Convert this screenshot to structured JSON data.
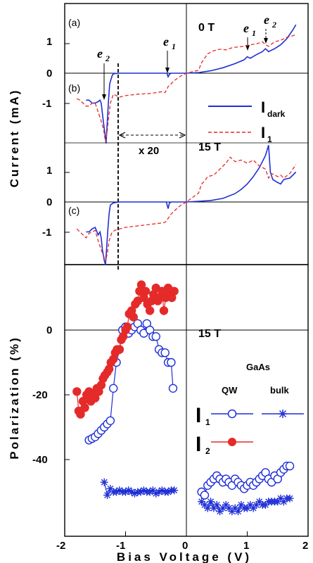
{
  "chart_data": [
    {
      "type": "line",
      "panel_label": "(a)",
      "field_label": "0 T",
      "ylabel": "Current (mA)",
      "ylim": [
        -2.6,
        1.75
      ],
      "xlim": [
        -2,
        2
      ],
      "yticks": [
        "1",
        "0",
        "-1"
      ],
      "annotations": [
        "e",
        "1",
        "e",
        "2"
      ],
      "series": [
        {
          "name": "I_dark",
          "color": "#1f2fd6",
          "style": "solid",
          "x": [
            -1.65,
            -1.6,
            -1.55,
            -1.5,
            -1.45,
            -1.42,
            -1.4,
            -1.38,
            -1.36,
            -1.34,
            -1.32,
            -1.3,
            -1.28,
            -1.26,
            -1.22,
            -1.2,
            -1.1,
            -1.0,
            -0.5,
            -0.32,
            -0.3,
            -0.28,
            -0.25,
            -0.1,
            0,
            0.2,
            0.4,
            0.6,
            0.8,
            0.95,
            1.0,
            1.05,
            1.15,
            1.25,
            1.3,
            1.35,
            1.45,
            1.55,
            1.65,
            1.75,
            1.8
          ],
          "y": [
            -0.9,
            -0.9,
            -1.0,
            -1.0,
            -0.95,
            -0.9,
            -1.0,
            -1.35,
            -1.7,
            -2.0,
            -2.35,
            -1.6,
            -0.9,
            -0.35,
            -0.08,
            -0.02,
            0,
            0,
            0,
            0,
            -0.12,
            -0.04,
            0,
            0,
            0,
            0.02,
            0.08,
            0.18,
            0.32,
            0.45,
            0.55,
            0.5,
            0.62,
            0.72,
            0.82,
            0.72,
            0.82,
            0.95,
            1.15,
            1.45,
            1.62
          ]
        },
        {
          "name": "I_1",
          "color": "#e52a2a",
          "style": "dashed",
          "x": [
            -1.8,
            -1.75,
            -1.7,
            -1.65,
            -1.6,
            -1.55,
            -1.5,
            -1.45,
            -1.4,
            -1.36,
            -1.33,
            -1.3,
            -1.28,
            -1.25,
            -1.2,
            -1.15,
            -1.1,
            -1.0,
            -0.8,
            -0.6,
            -0.4,
            -0.35,
            -0.3,
            -0.25,
            -0.2,
            -0.1,
            0,
            0.2,
            0.25,
            0.3,
            0.35,
            0.45,
            0.55,
            0.65,
            0.75,
            0.85,
            0.95,
            1.05,
            1.15,
            1.25,
            1.3,
            1.35,
            1.45,
            1.55,
            1.65,
            1.75,
            1.8
          ],
          "y": [
            -0.85,
            -0.9,
            -1.0,
            -1.1,
            -1.1,
            -1.0,
            -1.0,
            -1.3,
            -1.6,
            -1.9,
            -2.3,
            -1.9,
            -1.5,
            -1.0,
            -0.7,
            -0.75,
            -0.8,
            -0.75,
            -0.7,
            -0.68,
            -0.62,
            -0.65,
            -0.45,
            -0.35,
            -0.25,
            -0.1,
            0,
            0.1,
            0.35,
            0.5,
            0.65,
            0.75,
            0.8,
            0.78,
            0.85,
            0.88,
            0.9,
            0.95,
            0.98,
            1.05,
            0.95,
            0.9,
            1.05,
            1.1,
            1.2,
            1.25,
            1.3
          ]
        }
      ],
      "legend": [
        "I",
        "dark",
        "I",
        "1"
      ],
      "bracket_label": "x 20"
    },
    {
      "type": "line",
      "panel_label": "(c)",
      "field_label": "15 T",
      "ylim": [
        -2.4,
        2.3
      ],
      "xlim": [
        -2,
        2
      ],
      "yticks": [
        "1",
        "0",
        "-1"
      ],
      "series": [
        {
          "name": "I_dark",
          "color": "#1f2fd6",
          "style": "solid",
          "x": [
            -1.65,
            -1.6,
            -1.55,
            -1.5,
            -1.45,
            -1.42,
            -1.4,
            -1.38,
            -1.35,
            -1.33,
            -1.31,
            -1.29,
            -1.27,
            -1.25,
            -1.2,
            -1.1,
            -1.0,
            -0.5,
            -0.33,
            -0.3,
            -0.28,
            -0.25,
            -0.1,
            0,
            0.2,
            0.4,
            0.6,
            0.8,
            0.9,
            1.0,
            1.1,
            1.2,
            1.3,
            1.35,
            1.38,
            1.42,
            1.5,
            1.55,
            1.6,
            1.7,
            1.8
          ],
          "y": [
            -1.0,
            -1.0,
            -0.9,
            -0.85,
            -1.1,
            -1.0,
            -1.2,
            -1.6,
            -1.95,
            -2.1,
            -1.5,
            -0.9,
            -0.4,
            -0.1,
            -0.03,
            0,
            0,
            0,
            0,
            -0.22,
            -0.04,
            0,
            0,
            0,
            0.02,
            0.05,
            0.12,
            0.28,
            0.42,
            0.6,
            0.85,
            1.15,
            1.55,
            1.9,
            1.0,
            0.75,
            0.65,
            0.6,
            0.75,
            0.8,
            1.0
          ]
        },
        {
          "name": "I_1",
          "color": "#e52a2a",
          "style": "dashed",
          "x": [
            -1.8,
            -1.75,
            -1.7,
            -1.65,
            -1.6,
            -1.55,
            -1.5,
            -1.45,
            -1.4,
            -1.36,
            -1.33,
            -1.3,
            -1.27,
            -1.23,
            -1.18,
            -1.1,
            -1.0,
            -0.8,
            -0.6,
            -0.4,
            -0.35,
            -0.3,
            -0.25,
            -0.2,
            -0.1,
            0,
            0.2,
            0.25,
            0.3,
            0.35,
            0.45,
            0.55,
            0.65,
            0.72,
            0.8,
            0.9,
            1.0,
            1.1,
            1.2,
            1.3,
            1.35,
            1.4,
            1.5,
            1.55,
            1.6,
            1.7,
            1.8
          ],
          "y": [
            -0.9,
            -1.0,
            -1.1,
            -1.2,
            -1.05,
            -1.0,
            -0.95,
            -1.3,
            -1.6,
            -1.8,
            -2.0,
            -1.7,
            -1.3,
            -1.05,
            -0.95,
            -0.9,
            -0.85,
            -0.8,
            -0.75,
            -0.7,
            -0.68,
            -0.55,
            -0.4,
            -0.3,
            -0.12,
            0,
            0.3,
            0.6,
            0.7,
            0.85,
            0.9,
            1.1,
            1.3,
            1.5,
            1.35,
            1.4,
            1.3,
            1.4,
            1.2,
            1.1,
            0.8,
            0.95,
            0.85,
            0.9,
            0.8,
            0.95,
            1.25
          ]
        }
      ]
    },
    {
      "type": "scatter",
      "field_label": "15 T",
      "ylabel": "Polarization (%)",
      "xlabel": "Bias Voltage (V)",
      "xlim": [
        -2,
        2
      ],
      "ylim": [
        -60,
        18
      ],
      "xticks": [
        "-2",
        "-1",
        "0",
        "1",
        "2"
      ],
      "yticks": [
        "0",
        "-20",
        "-40"
      ],
      "legend_title": "GaAs",
      "legend_cols": [
        "QW",
        "bulk"
      ],
      "legend_rows": [
        "I",
        "1",
        "I",
        "2"
      ],
      "series": [
        {
          "name": "I_1 QW (V<0)",
          "color": "#1f2fd6",
          "marker": "open-circle",
          "line": true,
          "x": [
            -1.6,
            -1.55,
            -1.5,
            -1.45,
            -1.4,
            -1.35,
            -1.3,
            -1.25,
            -1.2,
            -1.15,
            -1.1,
            -1.05,
            -1.0,
            -0.95,
            -0.9,
            -0.85,
            -0.8,
            -0.75,
            -0.7,
            -0.65,
            -0.6,
            -0.55,
            -0.5,
            -0.45,
            -0.4,
            -0.35,
            -0.3,
            -0.25,
            -0.22
          ],
          "y": [
            -34,
            -33.5,
            -33,
            -32,
            -31,
            -30,
            -29,
            -28,
            -18,
            -10,
            -6,
            0,
            1,
            -1,
            0,
            1,
            2,
            0,
            -1,
            2,
            0,
            -2,
            -2,
            -6,
            -7,
            -7,
            -10,
            -10,
            -18
          ]
        },
        {
          "name": "I_1 QW (V>0)",
          "color": "#1f2fd6",
          "marker": "open-circle",
          "line": true,
          "x": [
            0.25,
            0.3,
            0.35,
            0.4,
            0.45,
            0.5,
            0.55,
            0.6,
            0.65,
            0.7,
            0.75,
            0.8,
            0.85,
            0.9,
            0.95,
            1.0,
            1.05,
            1.1,
            1.15,
            1.2,
            1.25,
            1.3,
            1.35,
            1.4,
            1.45,
            1.5,
            1.55,
            1.6,
            1.65,
            1.7
          ],
          "y": [
            -50,
            -51,
            -48,
            -47,
            -46,
            -45,
            -46,
            -47,
            -46,
            -47,
            -48,
            -46,
            -47,
            -48,
            -49,
            -48,
            -47,
            -48,
            -47,
            -46,
            -45,
            -44,
            -46,
            -47,
            -45,
            -46,
            -44,
            -43,
            -42,
            -42
          ]
        },
        {
          "name": "I_1 bulk (V<0)",
          "color": "#1f2fd6",
          "marker": "star",
          "line": true,
          "x": [
            -1.35,
            -1.3,
            -1.25,
            -1.2,
            -1.15,
            -1.1,
            -1.05,
            -1.0,
            -0.95,
            -0.9,
            -0.85,
            -0.8,
            -0.75,
            -0.7,
            -0.65,
            -0.6,
            -0.55,
            -0.5,
            -0.45,
            -0.4,
            -0.35,
            -0.3,
            -0.25,
            -0.2
          ],
          "y": [
            -47,
            -51,
            -49,
            -50,
            -50,
            -49.5,
            -50,
            -50,
            -49.5,
            -50,
            -50.5,
            -50,
            -50,
            -49.5,
            -50,
            -50,
            -49.5,
            -50.5,
            -50,
            -49.5,
            -50,
            -50,
            -49.5,
            -49.5
          ]
        },
        {
          "name": "I_1 bulk (V>0)",
          "color": "#1f2fd6",
          "marker": "star",
          "line": true,
          "x": [
            0.25,
            0.3,
            0.35,
            0.4,
            0.45,
            0.5,
            0.55,
            0.6,
            0.65,
            0.7,
            0.75,
            0.8,
            0.85,
            0.9,
            0.95,
            1.0,
            1.05,
            1.1,
            1.15,
            1.2,
            1.25,
            1.3,
            1.35,
            1.4,
            1.45,
            1.5,
            1.55,
            1.6,
            1.65,
            1.7
          ],
          "y": [
            -53,
            -54,
            -55,
            -53,
            -55,
            -54,
            -56,
            -55,
            -54,
            -55,
            -56,
            -55,
            -56,
            -54,
            -55,
            -55,
            -54,
            -55,
            -54,
            -53,
            -54,
            -54,
            -53,
            -53,
            -53,
            -53,
            -52,
            -53,
            -52,
            -52
          ]
        },
        {
          "name": "I_2 QW",
          "color": "#e52a2a",
          "marker": "filled-circle",
          "line": true,
          "x": [
            -1.8,
            -1.77,
            -1.74,
            -1.7,
            -1.67,
            -1.64,
            -1.6,
            -1.57,
            -1.54,
            -1.5,
            -1.47,
            -1.44,
            -1.4,
            -1.37,
            -1.34,
            -1.3,
            -1.27,
            -1.24,
            -1.2,
            -1.17,
            -1.14,
            -1.1,
            -1.07,
            -1.04,
            -1.0,
            -0.97,
            -0.94,
            -0.9,
            -0.87,
            -0.84,
            -0.8,
            -0.77,
            -0.74,
            -0.7,
            -0.67,
            -0.64,
            -0.6,
            -0.57,
            -0.54,
            -0.5,
            -0.47,
            -0.44,
            -0.4,
            -0.37,
            -0.34,
            -0.3,
            -0.27,
            -0.24,
            -0.2
          ],
          "y": [
            -19,
            -25,
            -26,
            -22,
            -24,
            -20,
            -19,
            -22,
            -20,
            -21,
            -18,
            -19,
            -17,
            -15,
            -14,
            -13,
            -12,
            -10,
            -9,
            -7,
            -6,
            -6,
            -3,
            -2,
            0,
            1,
            5,
            6,
            4,
            8,
            9,
            12,
            14,
            10,
            12,
            8,
            6,
            9,
            11,
            13,
            9,
            10,
            12,
            6,
            10,
            13,
            12,
            10,
            12
          ]
        }
      ]
    }
  ]
}
